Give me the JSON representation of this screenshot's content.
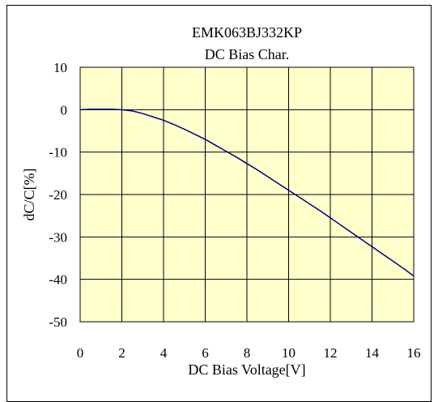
{
  "chart_data": {
    "type": "line",
    "title": "EMK063BJ332KP",
    "subtitle": "DC Bias Char.",
    "xlabel": "DC Bias Voltage[V]",
    "ylabel": "dC/C[%]",
    "xlim": [
      0,
      16
    ],
    "ylim": [
      -50,
      10
    ],
    "xticks": [
      "0",
      "2",
      "4",
      "6",
      "8",
      "10",
      "12",
      "14",
      "16"
    ],
    "yticks": [
      "10",
      "0",
      "-10",
      "-20",
      "-30",
      "-40",
      "-50"
    ],
    "grid": true,
    "plot_background": "#ffffcc",
    "series": [
      {
        "color": "#000080",
        "x": [
          0,
          0.5,
          1.0,
          1.5,
          2.0,
          2.5,
          3.0,
          3.5,
          4.0,
          4.5,
          5.0,
          5.5,
          6.0,
          6.5,
          7.0,
          7.5,
          8.0,
          8.5,
          9.0,
          9.5,
          10.0,
          10.5,
          11.0,
          11.5,
          12.0,
          12.5,
          13.0,
          13.5,
          14.0,
          14.5,
          15.0,
          15.5,
          16.0
        ],
        "y": [
          0.0,
          0.1,
          0.1,
          0.1,
          0.0,
          -0.3,
          -0.9,
          -1.7,
          -2.5,
          -3.5,
          -4.6,
          -5.8,
          -7.0,
          -8.4,
          -9.8,
          -11.2,
          -12.7,
          -14.2,
          -15.8,
          -17.4,
          -19.0,
          -20.6,
          -22.2,
          -23.8,
          -25.5,
          -27.2,
          -28.9,
          -30.6,
          -32.3,
          -34.0,
          -35.7,
          -37.4,
          -39.2
        ]
      }
    ]
  }
}
